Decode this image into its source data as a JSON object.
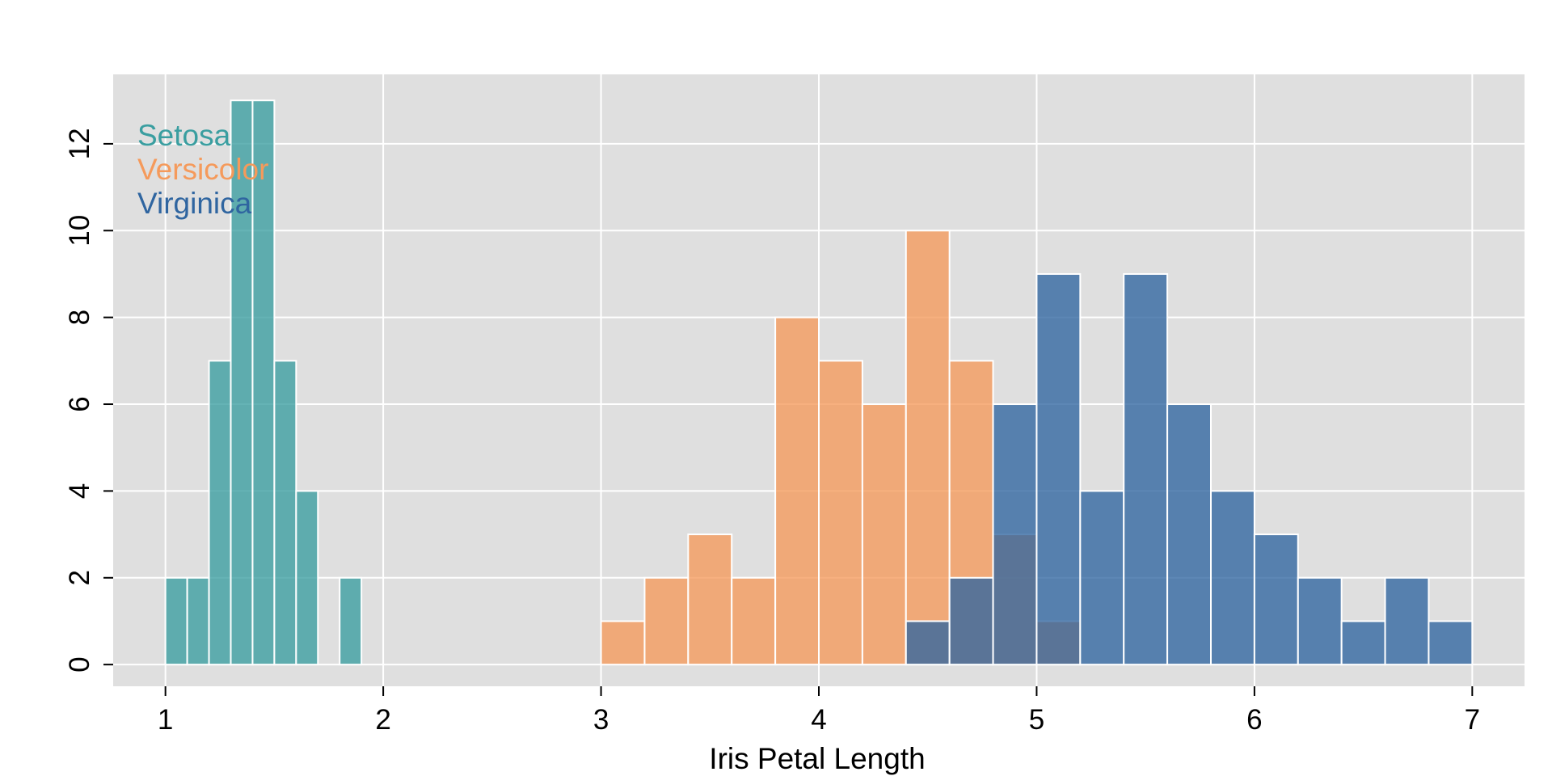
{
  "chart_data": {
    "type": "bar",
    "subtype": "overlaid histogram",
    "title": "",
    "xlabel": "Iris Petal Length",
    "ylabel": "",
    "xlim": [
      0.76,
      7.24
    ],
    "ylim": [
      -0.5,
      13.6
    ],
    "x_ticks": [
      1,
      2,
      3,
      4,
      5,
      6,
      7
    ],
    "y_ticks": [
      0,
      2,
      4,
      6,
      8,
      10,
      12
    ],
    "grid": true,
    "legend_position": "top-left",
    "background_color": "#dfdfdf",
    "series": [
      {
        "name": "Setosa",
        "color": "#3a9ea0",
        "bins": [
          {
            "x0": 1.0,
            "x1": 1.1,
            "count": 2
          },
          {
            "x0": 1.1,
            "x1": 1.2,
            "count": 2
          },
          {
            "x0": 1.2,
            "x1": 1.3,
            "count": 7
          },
          {
            "x0": 1.3,
            "x1": 1.4,
            "count": 13
          },
          {
            "x0": 1.4,
            "x1": 1.5,
            "count": 13
          },
          {
            "x0": 1.5,
            "x1": 1.6,
            "count": 7
          },
          {
            "x0": 1.6,
            "x1": 1.7,
            "count": 4
          },
          {
            "x0": 1.8,
            "x1": 1.9,
            "count": 2
          }
        ]
      },
      {
        "name": "Versicolor",
        "color": "#f59a5b",
        "bins": [
          {
            "x0": 3.0,
            "x1": 3.2,
            "count": 1
          },
          {
            "x0": 3.2,
            "x1": 3.4,
            "count": 2
          },
          {
            "x0": 3.4,
            "x1": 3.6,
            "count": 3
          },
          {
            "x0": 3.6,
            "x1": 3.8,
            "count": 2
          },
          {
            "x0": 3.8,
            "x1": 4.0,
            "count": 8
          },
          {
            "x0": 4.0,
            "x1": 4.2,
            "count": 7
          },
          {
            "x0": 4.2,
            "x1": 4.4,
            "count": 6
          },
          {
            "x0": 4.4,
            "x1": 4.6,
            "count": 10
          },
          {
            "x0": 4.6,
            "x1": 4.8,
            "count": 7
          },
          {
            "x0": 4.8,
            "x1": 5.0,
            "count": 3
          },
          {
            "x0": 5.0,
            "x1": 5.2,
            "count": 1
          }
        ]
      },
      {
        "name": "Virginica",
        "color": "#2f65a0",
        "bins": [
          {
            "x0": 4.4,
            "x1": 4.6,
            "count": 1
          },
          {
            "x0": 4.6,
            "x1": 4.8,
            "count": 2
          },
          {
            "x0": 4.8,
            "x1": 5.0,
            "count": 6
          },
          {
            "x0": 5.0,
            "x1": 5.2,
            "count": 9
          },
          {
            "x0": 5.2,
            "x1": 5.4,
            "count": 4
          },
          {
            "x0": 5.4,
            "x1": 5.6,
            "count": 9
          },
          {
            "x0": 5.6,
            "x1": 5.8,
            "count": 6
          },
          {
            "x0": 5.8,
            "x1": 6.0,
            "count": 4
          },
          {
            "x0": 6.0,
            "x1": 6.2,
            "count": 3
          },
          {
            "x0": 6.2,
            "x1": 6.4,
            "count": 2
          },
          {
            "x0": 6.4,
            "x1": 6.6,
            "count": 1
          },
          {
            "x0": 6.6,
            "x1": 6.8,
            "count": 2
          },
          {
            "x0": 6.8,
            "x1": 7.0,
            "count": 1
          }
        ]
      }
    ]
  }
}
